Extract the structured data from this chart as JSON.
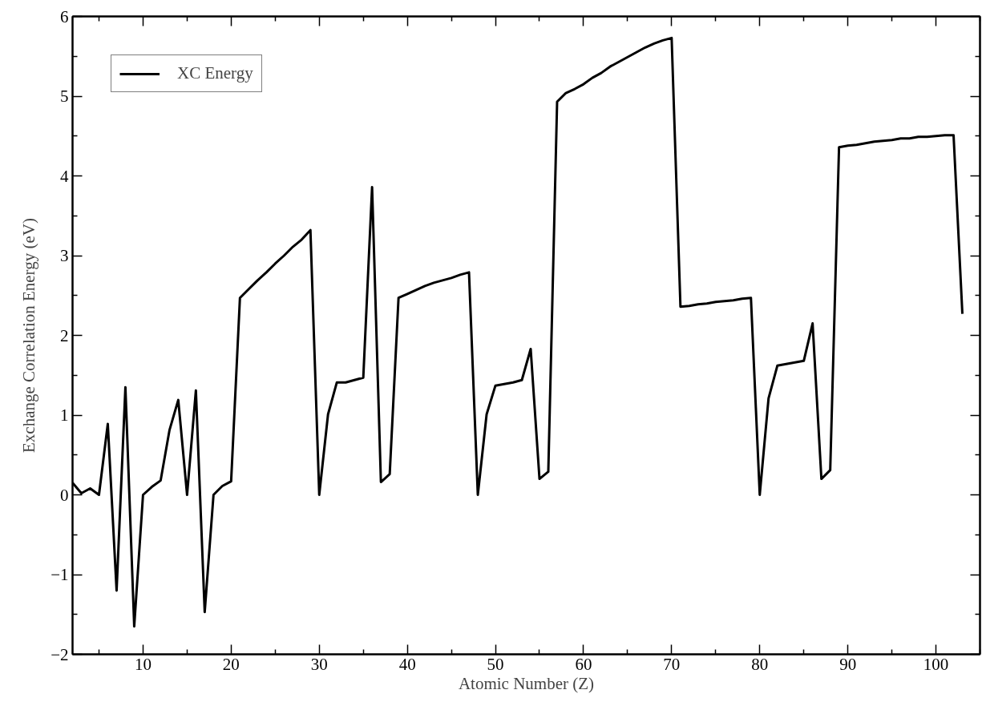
{
  "chart_data": {
    "type": "line",
    "xlabel": "Atomic Number (Z)",
    "ylabel": "Exchange Correlation Energy (eV)",
    "x": [
      2,
      3,
      4,
      5,
      6,
      7,
      8,
      9,
      10,
      11,
      12,
      13,
      14,
      15,
      16,
      17,
      18,
      19,
      20,
      21,
      22,
      23,
      24,
      25,
      26,
      27,
      28,
      29,
      30,
      31,
      32,
      33,
      34,
      35,
      36,
      37,
      38,
      39,
      40,
      41,
      42,
      43,
      44,
      45,
      46,
      47,
      48,
      49,
      50,
      51,
      52,
      53,
      54,
      55,
      56,
      57,
      58,
      59,
      60,
      61,
      62,
      63,
      64,
      65,
      66,
      67,
      68,
      69,
      70,
      71,
      72,
      73,
      74,
      75,
      76,
      77,
      78,
      79,
      80,
      81,
      82,
      83,
      84,
      85,
      86,
      87,
      88,
      89,
      90,
      91,
      92,
      93,
      94,
      95,
      96,
      97,
      98,
      99,
      100,
      101,
      102,
      103
    ],
    "series": [
      {
        "name": "XC Energy",
        "color": "#000000",
        "values": [
          0.15,
          0.02,
          0.08,
          0,
          0.89,
          -1.2,
          1.35,
          -1.65,
          0,
          0.1,
          0.18,
          0.81,
          1.19,
          0,
          1.31,
          -1.47,
          0,
          0.11,
          0.17,
          2.47,
          2.58,
          2.69,
          2.79,
          2.9,
          3.0,
          3.11,
          3.2,
          3.32,
          0,
          1.01,
          1.41,
          1.41,
          1.44,
          1.47,
          3.86,
          0.16,
          0.26,
          2.47,
          2.52,
          2.57,
          2.62,
          2.66,
          2.69,
          2.72,
          2.76,
          2.79,
          0,
          1.01,
          1.37,
          1.39,
          1.41,
          1.44,
          1.83,
          0.2,
          0.29,
          4.93,
          5.04,
          5.09,
          5.15,
          5.23,
          5.29,
          5.37,
          5.43,
          5.49,
          5.55,
          5.61,
          5.66,
          5.7,
          5.73,
          2.36,
          2.37,
          2.39,
          2.4,
          2.42,
          2.43,
          2.44,
          2.46,
          2.47,
          0,
          1.21,
          1.62,
          1.64,
          1.66,
          1.68,
          2.15,
          0.2,
          0.31,
          4.36,
          4.38,
          4.39,
          4.41,
          4.43,
          4.44,
          4.45,
          4.47,
          4.47,
          4.49,
          4.49,
          4.5,
          4.51,
          4.51,
          2.27
        ]
      }
    ],
    "xlim": [
      2,
      105
    ],
    "ylim": [
      -2,
      6
    ],
    "xticks": [
      10,
      20,
      30,
      40,
      50,
      60,
      70,
      80,
      90,
      100
    ],
    "yticks": [
      -2,
      -1,
      0,
      1,
      2,
      3,
      4,
      5,
      6
    ],
    "grid": false,
    "legend": "top left",
    "marker": "none",
    "line_style": "solid"
  }
}
